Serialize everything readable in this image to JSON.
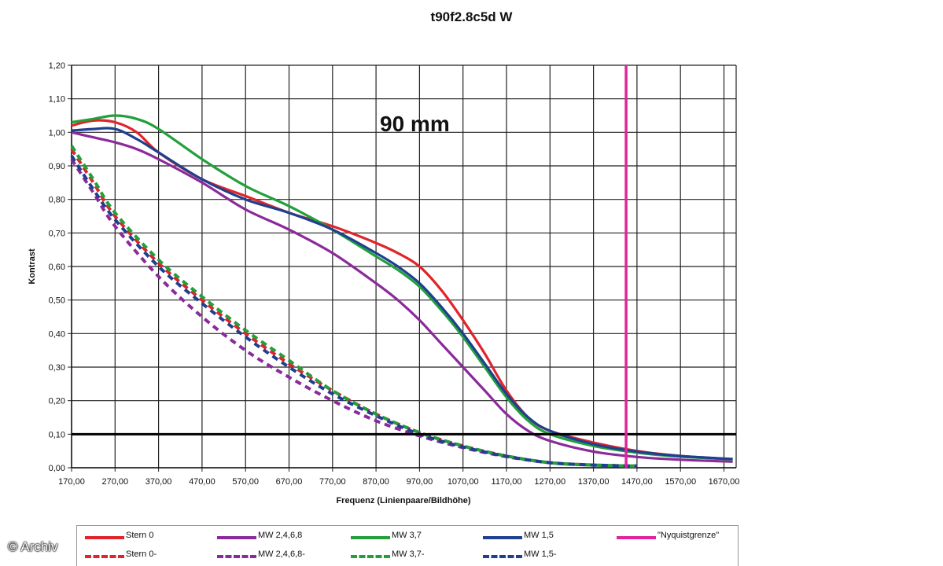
{
  "chart_data": {
    "type": "line",
    "title": "t90f2.8c5d W",
    "annotation": "90 mm",
    "xlabel": "Frequenz (Linienpaare/Bildhöhe)",
    "ylabel": "Kontrast",
    "xlim": [
      170,
      1690
    ],
    "ylim": [
      0,
      1.2
    ],
    "x_ticks": [
      "170,00",
      "270,00",
      "370,00",
      "470,00",
      "570,00",
      "670,00",
      "770,00",
      "870,00",
      "970,00",
      "1070,00",
      "1170,00",
      "1270,00",
      "1370,00",
      "1470,00",
      "1570,00",
      "1670,00"
    ],
    "y_ticks": [
      "0,00",
      "0,10",
      "0,20",
      "0,30",
      "0,40",
      "0,50",
      "0,60",
      "0,70",
      "0,80",
      "0,90",
      "1,00",
      "1,10",
      "1,20"
    ],
    "grid": true,
    "legend_position": "bottom",
    "reference_line": {
      "y": 0.1,
      "color": "#000000"
    },
    "nyquist_x": 1445,
    "series": [
      {
        "name": "Stern 0",
        "color": "#e0242a",
        "dash": false,
        "x": [
          170,
          220,
          270,
          320,
          370,
          470,
          570,
          670,
          770,
          870,
          920,
          970,
          1020,
          1070,
          1120,
          1170,
          1220,
          1270,
          1370,
          1470,
          1570,
          1690
        ],
        "y": [
          1.02,
          1.035,
          1.03,
          1.0,
          0.94,
          0.86,
          0.81,
          0.76,
          0.72,
          0.67,
          0.64,
          0.6,
          0.53,
          0.44,
          0.34,
          0.23,
          0.15,
          0.11,
          0.075,
          0.05,
          0.035,
          0.025
        ]
      },
      {
        "name": "MW 2,4,6,8",
        "color": "#8b2a9a",
        "dash": false,
        "x": [
          170,
          220,
          270,
          320,
          370,
          470,
          570,
          670,
          770,
          870,
          920,
          970,
          1020,
          1070,
          1120,
          1170,
          1220,
          1270,
          1370,
          1470,
          1570,
          1690
        ],
        "y": [
          1.0,
          0.985,
          0.97,
          0.95,
          0.92,
          0.85,
          0.77,
          0.71,
          0.64,
          0.55,
          0.5,
          0.44,
          0.37,
          0.3,
          0.23,
          0.16,
          0.11,
          0.08,
          0.048,
          0.032,
          0.024,
          0.018
        ]
      },
      {
        "name": "MW 3,7",
        "color": "#22a03a",
        "dash": false,
        "x": [
          170,
          220,
          270,
          320,
          370,
          470,
          570,
          670,
          770,
          870,
          920,
          970,
          1020,
          1070,
          1120,
          1170,
          1220,
          1270,
          1370,
          1470,
          1570,
          1690
        ],
        "y": [
          1.03,
          1.04,
          1.05,
          1.04,
          1.01,
          0.92,
          0.84,
          0.78,
          0.71,
          0.63,
          0.59,
          0.54,
          0.47,
          0.39,
          0.3,
          0.21,
          0.14,
          0.1,
          0.065,
          0.045,
          0.033,
          0.025
        ]
      },
      {
        "name": "MW 1,5",
        "color": "#1f3f8f",
        "dash": false,
        "x": [
          170,
          220,
          270,
          320,
          370,
          470,
          570,
          670,
          770,
          870,
          920,
          970,
          1020,
          1070,
          1120,
          1170,
          1220,
          1270,
          1370,
          1470,
          1570,
          1690
        ],
        "y": [
          1.005,
          1.01,
          1.01,
          0.98,
          0.94,
          0.86,
          0.8,
          0.76,
          0.71,
          0.64,
          0.6,
          0.55,
          0.48,
          0.4,
          0.31,
          0.22,
          0.15,
          0.11,
          0.07,
          0.048,
          0.035,
          0.026
        ]
      },
      {
        "name": "\"Nyquistgrenze\"",
        "color": "#e0259a",
        "dash": false,
        "x": [],
        "y": []
      },
      {
        "name": "Stern 0-",
        "color": "#e0242a",
        "dash": true,
        "x": [
          170,
          220,
          270,
          370,
          470,
          570,
          670,
          770,
          870,
          970,
          1070,
          1170,
          1270,
          1370,
          1470
        ],
        "y": [
          0.95,
          0.85,
          0.75,
          0.61,
          0.5,
          0.4,
          0.31,
          0.23,
          0.16,
          0.105,
          0.065,
          0.035,
          0.015,
          0.008,
          0.005
        ]
      },
      {
        "name": "MW 2,4,6,8-",
        "color": "#8b2a9a",
        "dash": true,
        "x": [
          170,
          220,
          270,
          370,
          470,
          570,
          670,
          770,
          870,
          970,
          1070,
          1170,
          1270,
          1370,
          1470
        ],
        "y": [
          0.92,
          0.82,
          0.72,
          0.57,
          0.45,
          0.35,
          0.27,
          0.2,
          0.14,
          0.095,
          0.06,
          0.033,
          0.015,
          0.008,
          0.005
        ]
      },
      {
        "name": "MW 3,7-",
        "color": "#22a03a",
        "dash": true,
        "x": [
          170,
          220,
          270,
          370,
          470,
          570,
          670,
          770,
          870,
          970,
          1070,
          1170,
          1270,
          1370,
          1470
        ],
        "y": [
          0.96,
          0.86,
          0.76,
          0.62,
          0.51,
          0.41,
          0.32,
          0.23,
          0.16,
          0.105,
          0.065,
          0.035,
          0.015,
          0.008,
          0.005
        ]
      },
      {
        "name": "MW 1,5-",
        "color": "#1f3f8f",
        "dash": true,
        "x": [
          170,
          220,
          270,
          370,
          470,
          570,
          670,
          770,
          870,
          970,
          1070,
          1170,
          1270,
          1370,
          1470
        ],
        "y": [
          0.93,
          0.83,
          0.74,
          0.6,
          0.49,
          0.39,
          0.3,
          0.22,
          0.155,
          0.1,
          0.062,
          0.034,
          0.015,
          0.008,
          0.005
        ]
      }
    ]
  },
  "watermark": "© Archiv"
}
